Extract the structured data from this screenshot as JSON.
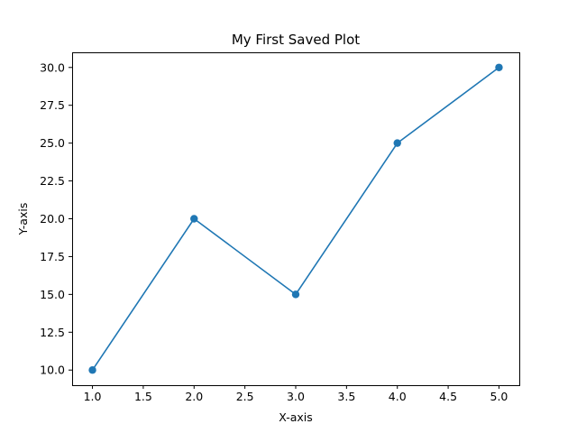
{
  "chart_data": {
    "type": "line",
    "title": "My First Saved Plot",
    "xlabel": "X-axis",
    "ylabel": "Y-axis",
    "x": [
      1,
      2,
      3,
      4,
      5
    ],
    "series": [
      {
        "values": [
          10,
          20,
          15,
          25,
          30
        ],
        "color": "#1f77b4",
        "marker": "circle"
      }
    ],
    "xlim": [
      0.8,
      5.2
    ],
    "ylim": [
      9.0,
      31.0
    ],
    "xticks": [
      1.0,
      1.5,
      2.0,
      2.5,
      3.0,
      3.5,
      4.0,
      4.5,
      5.0
    ],
    "xtick_labels": [
      "1.0",
      "1.5",
      "2.0",
      "2.5",
      "3.0",
      "3.5",
      "4.0",
      "4.5",
      "5.0"
    ],
    "yticks": [
      10.0,
      12.5,
      15.0,
      17.5,
      20.0,
      22.5,
      25.0,
      27.5,
      30.0
    ],
    "ytick_labels": [
      "10.0",
      "12.5",
      "15.0",
      "17.5",
      "20.0",
      "22.5",
      "25.0",
      "27.5",
      "30.0"
    ],
    "grid": false,
    "legend": "none"
  }
}
